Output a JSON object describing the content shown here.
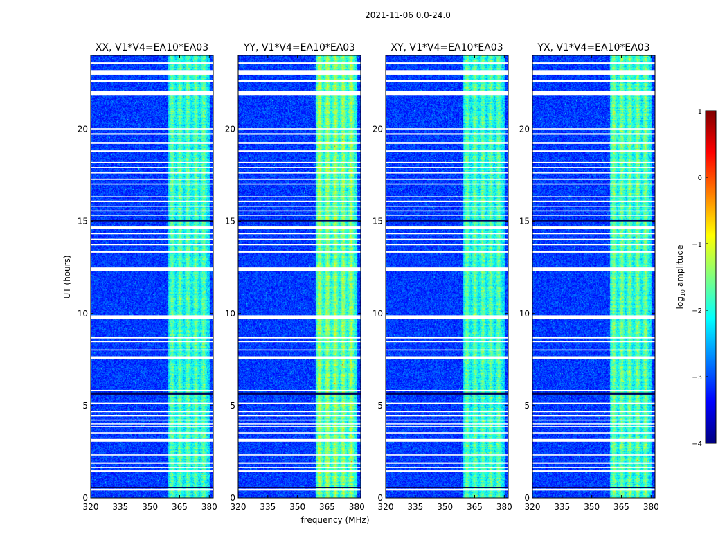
{
  "chart_data": {
    "type": "heatmap",
    "suptitle": "2021-11-06 0.0-24.0",
    "xlabel": "frequency (MHz)",
    "ylabel": "UT (hours)",
    "xlim": [
      320,
      382
    ],
    "ylim": [
      0,
      24
    ],
    "xticks": [
      320,
      335,
      350,
      365,
      380
    ],
    "yticks": [
      0,
      5,
      10,
      15,
      20
    ],
    "panels": [
      {
        "title": "XX, V1*V4=EA10*EA03",
        "band_peak": -1.6
      },
      {
        "title": "YY, V1*V4=EA10*EA03",
        "band_peak": -1.3
      },
      {
        "title": "XY, V1*V4=EA10*EA03",
        "band_peak": -1.6
      },
      {
        "title": "YX, V1*V4=EA10*EA03",
        "band_peak": -1.5
      }
    ],
    "rfi_band_mhz": [
      359,
      380
    ],
    "rfi_subchannel_centers_mhz": [
      361,
      365,
      369,
      373,
      377
    ],
    "background_level": -3.1,
    "flagged_hours": [
      [
        0.4,
        0.5
      ],
      [
        1.42,
        1.5
      ],
      [
        1.62,
        1.68
      ],
      [
        1.85,
        1.93
      ],
      [
        2.3,
        2.36
      ],
      [
        3.05,
        3.2
      ],
      [
        3.5,
        3.56
      ],
      [
        3.85,
        3.9
      ],
      [
        4.0,
        4.05
      ],
      [
        4.2,
        4.25
      ],
      [
        4.42,
        4.48
      ],
      [
        4.65,
        4.72
      ],
      [
        5.1,
        5.16
      ],
      [
        5.8,
        5.86
      ],
      [
        7.55,
        7.68
      ],
      [
        8.0,
        8.05
      ],
      [
        8.45,
        8.5
      ],
      [
        8.65,
        8.72
      ],
      [
        9.7,
        9.9
      ],
      [
        12.3,
        12.5
      ],
      [
        13.3,
        13.38
      ],
      [
        13.7,
        13.78
      ],
      [
        14.0,
        14.06
      ],
      [
        14.3,
        14.38
      ],
      [
        14.6,
        14.72
      ],
      [
        15.3,
        15.36
      ],
      [
        15.55,
        15.6
      ],
      [
        15.8,
        15.85
      ],
      [
        16.05,
        16.12
      ],
      [
        16.3,
        16.36
      ],
      [
        17.0,
        17.06
      ],
      [
        17.25,
        17.32
      ],
      [
        17.6,
        17.65
      ],
      [
        17.9,
        17.95
      ],
      [
        18.15,
        18.22
      ],
      [
        18.75,
        18.85
      ],
      [
        19.2,
        19.3
      ],
      [
        19.7,
        19.78
      ],
      [
        19.95,
        20.05
      ],
      [
        21.85,
        22.05
      ],
      [
        22.55,
        22.65
      ],
      [
        22.95,
        23.2
      ],
      [
        23.55,
        23.62
      ]
    ],
    "dark_hours": [
      [
        5.6,
        5.72
      ],
      [
        15.0,
        15.1
      ],
      [
        0.55,
        0.6
      ]
    ],
    "colorbar": {
      "label": "log",
      "label_sub": "10",
      "label_rest": " amplitude",
      "range": [
        -4,
        1
      ],
      "ticks": [
        1,
        0,
        -1,
        -2,
        -3,
        -4
      ],
      "tick_labels": [
        "1",
        "0",
        "−1",
        "−2",
        "−3",
        "−4"
      ],
      "colormap": "jet"
    },
    "x_tick_labels": [
      "320",
      "335",
      "350",
      "365",
      "380"
    ],
    "y_tick_labels": [
      "0",
      "5",
      "10",
      "15",
      "20"
    ]
  }
}
